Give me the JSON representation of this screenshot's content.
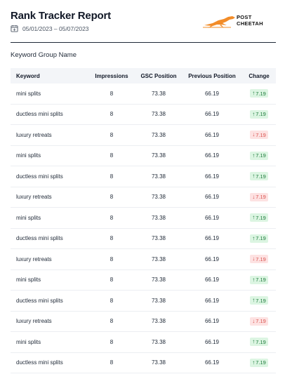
{
  "report": {
    "title": "Rank Tracker Report",
    "date_range": "05/01/2023 – 05/07/2023",
    "group_name": "Keyword Group Name"
  },
  "logo": {
    "line1": "POST",
    "line2": "CHEETAH",
    "accent": "#f28c28"
  },
  "table": {
    "headers": [
      "Keyword",
      "Impressions",
      "GSC Position",
      "Previous Position",
      "Change"
    ],
    "rows": [
      {
        "keyword": "mini splits",
        "impressions": "8",
        "gsc": "73.38",
        "previous": "66.19",
        "change": "7.19",
        "direction": "up"
      },
      {
        "keyword": "ductless mini splits",
        "impressions": "8",
        "gsc": "73.38",
        "previous": "66.19",
        "change": "7.19",
        "direction": "up"
      },
      {
        "keyword": "luxury retreats",
        "impressions": "8",
        "gsc": "73.38",
        "previous": "66.19",
        "change": "7.19",
        "direction": "down"
      },
      {
        "keyword": "mini splits",
        "impressions": "8",
        "gsc": "73.38",
        "previous": "66.19",
        "change": "7.19",
        "direction": "up"
      },
      {
        "keyword": "ductless mini splits",
        "impressions": "8",
        "gsc": "73.38",
        "previous": "66.19",
        "change": "7.19",
        "direction": "up"
      },
      {
        "keyword": "luxury retreats",
        "impressions": "8",
        "gsc": "73.38",
        "previous": "66.19",
        "change": "7.19",
        "direction": "down"
      },
      {
        "keyword": "mini splits",
        "impressions": "8",
        "gsc": "73.38",
        "previous": "66.19",
        "change": "7.19",
        "direction": "up"
      },
      {
        "keyword": "ductless mini splits",
        "impressions": "8",
        "gsc": "73.38",
        "previous": "66.19",
        "change": "7.19",
        "direction": "up"
      },
      {
        "keyword": "luxury retreats",
        "impressions": "8",
        "gsc": "73.38",
        "previous": "66.19",
        "change": "7.19",
        "direction": "down"
      },
      {
        "keyword": "mini splits",
        "impressions": "8",
        "gsc": "73.38",
        "previous": "66.19",
        "change": "7.19",
        "direction": "up"
      },
      {
        "keyword": "ductless mini splits",
        "impressions": "8",
        "gsc": "73.38",
        "previous": "66.19",
        "change": "7.19",
        "direction": "up"
      },
      {
        "keyword": "luxury retreats",
        "impressions": "8",
        "gsc": "73.38",
        "previous": "66.19",
        "change": "7.19",
        "direction": "down"
      },
      {
        "keyword": "mini splits",
        "impressions": "8",
        "gsc": "73.38",
        "previous": "66.19",
        "change": "7.19",
        "direction": "up"
      },
      {
        "keyword": "ductless mini splits",
        "impressions": "8",
        "gsc": "73.38",
        "previous": "66.19",
        "change": "7.19",
        "direction": "up"
      }
    ]
  },
  "colors": {
    "up": "#1c7a3a",
    "down": "#d9534f"
  },
  "icons": {
    "date": "calendar-icon",
    "up": "arrow-up-icon",
    "down": "arrow-down-icon"
  }
}
